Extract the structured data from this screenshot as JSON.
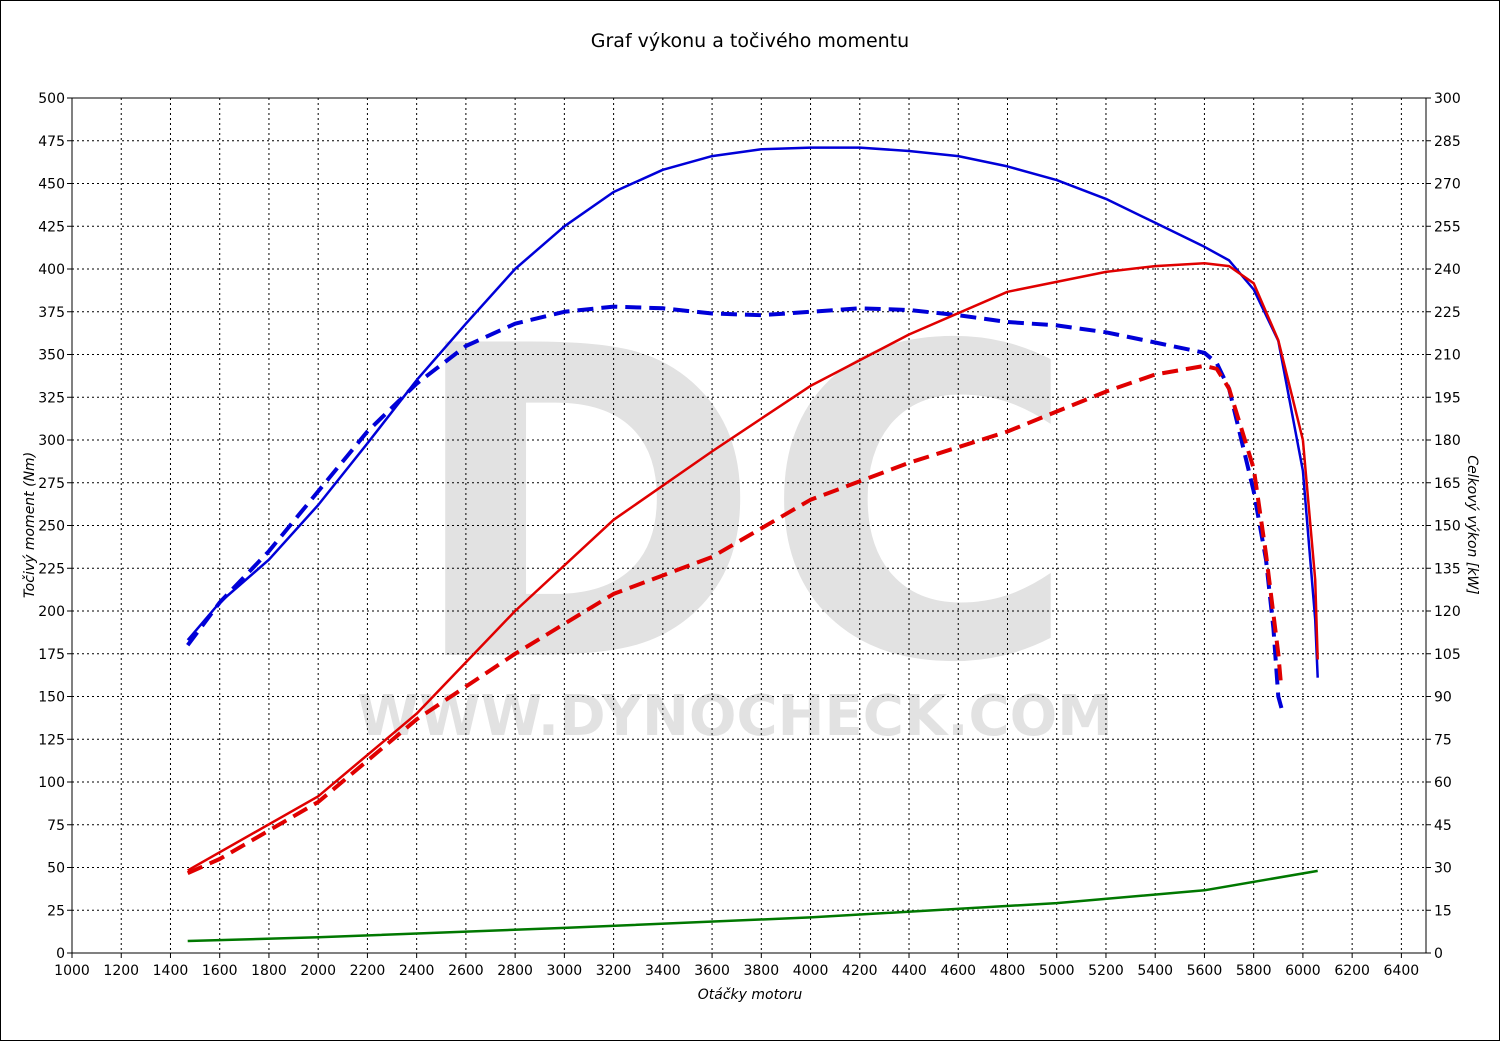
{
  "chart_data": {
    "type": "line",
    "title": "Graf výkonu a točivého momentu",
    "xlabel": "Otáčky motoru",
    "ylabel": "Točivý moment (Nm)",
    "y2label": "Celkový výkon [kW]",
    "watermark": "DC",
    "watermark_url": "WWW.DYNOCHECK.COM",
    "xlim": [
      1000,
      6500
    ],
    "xticks": [
      1000,
      1200,
      1400,
      1600,
      1800,
      2000,
      2200,
      2400,
      2600,
      2800,
      3000,
      3200,
      3400,
      3600,
      3800,
      4000,
      4200,
      4400,
      4600,
      4800,
      5000,
      5200,
      5400,
      5600,
      5800,
      6000,
      6200,
      6400
    ],
    "ylim": [
      0,
      500
    ],
    "yticks": [
      0,
      25,
      50,
      75,
      100,
      125,
      150,
      175,
      200,
      225,
      250,
      275,
      300,
      325,
      350,
      375,
      400,
      425,
      450,
      475,
      500
    ],
    "y2lim": [
      0,
      300
    ],
    "y2ticks": [
      0,
      15,
      30,
      45,
      60,
      75,
      90,
      105,
      120,
      135,
      150,
      165,
      180,
      195,
      210,
      225,
      240,
      255,
      270,
      285,
      300
    ],
    "grid": true,
    "series": [
      {
        "color": "#0000d8",
        "style": "solid",
        "axis": "y",
        "x": [
          1470,
          1600,
          1800,
          2000,
          2200,
          2400,
          2600,
          2800,
          3000,
          3200,
          3400,
          3600,
          3800,
          4000,
          4200,
          4400,
          4600,
          4800,
          5000,
          5200,
          5400,
          5600,
          5700,
          5800,
          5900,
          6000,
          6050,
          6060
        ],
        "values": [
          183,
          205,
          230,
          262,
          298,
          335,
          368,
          400,
          425,
          445,
          458,
          466,
          470,
          471,
          471,
          469,
          466,
          460,
          452,
          441,
          427,
          413,
          405,
          388,
          358,
          282,
          195,
          161
        ]
      },
      {
        "color": "#0000d8",
        "style": "dashed",
        "axis": "y",
        "x": [
          1470,
          1600,
          1800,
          2000,
          2200,
          2400,
          2600,
          2800,
          3000,
          3200,
          3400,
          3600,
          3800,
          4000,
          4200,
          4400,
          4600,
          4800,
          5000,
          5200,
          5400,
          5600,
          5650,
          5700,
          5800,
          5850,
          5880,
          5900,
          5917
        ],
        "values": [
          180,
          205,
          235,
          270,
          305,
          333,
          355,
          368,
          375,
          378,
          377,
          374,
          373,
          375,
          377,
          376,
          373,
          369,
          367,
          363,
          357,
          351,
          345,
          330,
          270,
          230,
          190,
          150,
          141
        ]
      },
      {
        "color": "#e00000",
        "style": "solid",
        "axis": "y2",
        "x": [
          1470,
          2000,
          2400,
          2800,
          3200,
          3600,
          4000,
          4400,
          4800,
          5200,
          5400,
          5600,
          5700,
          5800,
          5900,
          6000,
          6050,
          6060
        ],
        "values": [
          29,
          55,
          84,
          120,
          152,
          176,
          199,
          217,
          232,
          239,
          241,
          242,
          241,
          235,
          215,
          180,
          131,
          103
        ]
      },
      {
        "color": "#e00000",
        "style": "dashed",
        "axis": "y2",
        "x": [
          1470,
          1600,
          2000,
          2400,
          2800,
          3200,
          3600,
          4000,
          4400,
          4800,
          5200,
          5400,
          5600,
          5650,
          5700,
          5800,
          5850,
          5900,
          5910
        ],
        "values": [
          28,
          33,
          53,
          82,
          105,
          126,
          139,
          159,
          172,
          183,
          197,
          203,
          206,
          205,
          198,
          170,
          140,
          105,
          95
        ]
      },
      {
        "color": "#007800",
        "style": "solid",
        "axis": "y2",
        "x": [
          1470,
          2000,
          3000,
          4000,
          5000,
          5600,
          6060
        ],
        "values": [
          4.2,
          5.5,
          8.8,
          12.5,
          17.5,
          22,
          28.8
        ]
      }
    ]
  }
}
